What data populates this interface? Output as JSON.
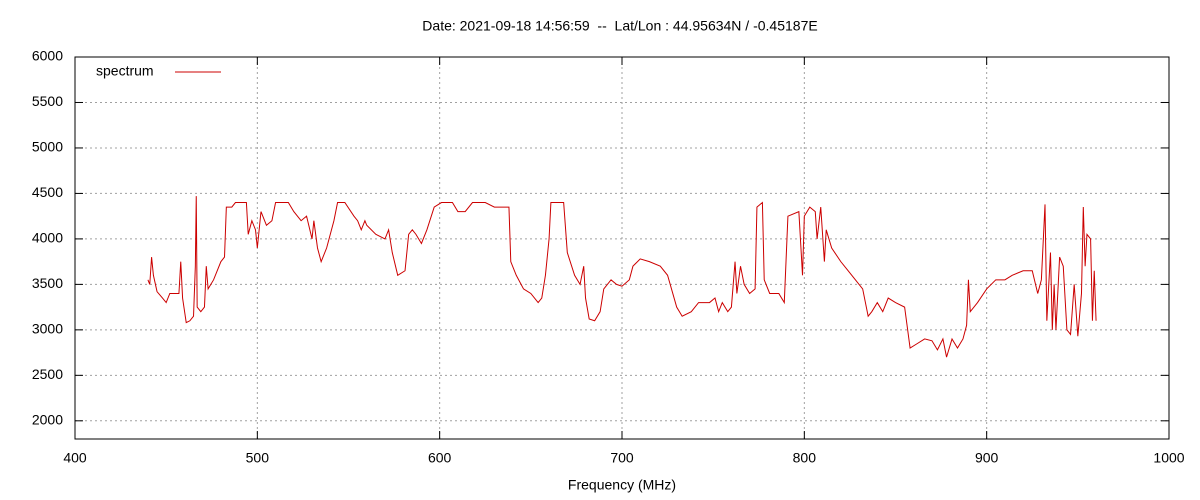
{
  "chart_data": {
    "type": "line",
    "title": "Date: 2021-09-18 14:56:59  --  Lat/Lon : 44.95634N / -0.45187E",
    "x_label": "Frequency (MHz)",
    "legend": "top-left",
    "grid": true,
    "xlim": [
      400,
      1000
    ],
    "xticks": [
      400,
      500,
      600,
      700,
      800,
      900,
      1000
    ],
    "ylim": [
      1800,
      6000
    ],
    "yticks": [
      2000,
      2500,
      3000,
      3500,
      4000,
      4500,
      5000,
      5500,
      6000
    ],
    "x": [
      440,
      441,
      442,
      443,
      445,
      448,
      450,
      452,
      457,
      458,
      459,
      461,
      463,
      465,
      466,
      466.5,
      467,
      469,
      471,
      472,
      473,
      476,
      480,
      482,
      483,
      486,
      488,
      494,
      495,
      497,
      499,
      500,
      502,
      505,
      508,
      510,
      517,
      520,
      524,
      527,
      530,
      531,
      533,
      535,
      538,
      542,
      544,
      548,
      553,
      555,
      557,
      559,
      560,
      565,
      570,
      572,
      574,
      577,
      581,
      583,
      585,
      587,
      590,
      593,
      597,
      601,
      607,
      610,
      614,
      618,
      625,
      630,
      635,
      638,
      639,
      642,
      646,
      650,
      654,
      656,
      658,
      660,
      661,
      668,
      670,
      674,
      677,
      679,
      680,
      682,
      685,
      688,
      690,
      694,
      697,
      700,
      704,
      706,
      710,
      715,
      721,
      725,
      730,
      733,
      738,
      742,
      748,
      751,
      753,
      755,
      758,
      760,
      762,
      763,
      765,
      767,
      770,
      773,
      774,
      777,
      778,
      781,
      786,
      789,
      791,
      797,
      799,
      800,
      803,
      806,
      807,
      809,
      811,
      812,
      815,
      820,
      824,
      828,
      832,
      835,
      837,
      840,
      843,
      846,
      850,
      855,
      858,
      862,
      866,
      870,
      873,
      876,
      878,
      881,
      884,
      887,
      889,
      890,
      891,
      895,
      900,
      905,
      910,
      914,
      920,
      925,
      928,
      930,
      932,
      933,
      935,
      936,
      937,
      938,
      940,
      942,
      944,
      946,
      948,
      950,
      952,
      953,
      954,
      955,
      957,
      958,
      959,
      960
    ],
    "series": [
      {
        "name": "spectrum",
        "color": "#cc0000",
        "values": [
          3550,
          3500,
          3800,
          3600,
          3420,
          3350,
          3300,
          3400,
          3400,
          3750,
          3350,
          3080,
          3100,
          3150,
          3700,
          4470,
          3250,
          3200,
          3250,
          3700,
          3450,
          3550,
          3750,
          3800,
          4350,
          4350,
          4400,
          4400,
          4050,
          4200,
          4100,
          3900,
          4300,
          4150,
          4200,
          4400,
          4400,
          4300,
          4200,
          4250,
          4000,
          4200,
          3900,
          3750,
          3900,
          4200,
          4400,
          4400,
          4250,
          4200,
          4100,
          4200,
          4150,
          4050,
          4000,
          4100,
          3850,
          3600,
          3650,
          4050,
          4100,
          4050,
          3950,
          4100,
          4350,
          4400,
          4400,
          4300,
          4300,
          4400,
          4400,
          4350,
          4350,
          4350,
          3750,
          3600,
          3450,
          3400,
          3300,
          3350,
          3600,
          4000,
          4400,
          4400,
          3850,
          3600,
          3500,
          3700,
          3350,
          3120,
          3100,
          3200,
          3450,
          3550,
          3500,
          3480,
          3550,
          3700,
          3780,
          3750,
          3700,
          3600,
          3250,
          3150,
          3200,
          3300,
          3300,
          3350,
          3200,
          3300,
          3200,
          3250,
          3750,
          3400,
          3700,
          3500,
          3400,
          3450,
          4350,
          4400,
          3550,
          3400,
          3400,
          3300,
          4250,
          4300,
          3600,
          4250,
          4350,
          4300,
          4000,
          4350,
          3750,
          4100,
          3900,
          3750,
          3650,
          3550,
          3450,
          3150,
          3200,
          3300,
          3200,
          3350,
          3300,
          3250,
          2800,
          2850,
          2900,
          2880,
          2780,
          2900,
          2700,
          2900,
          2800,
          2900,
          3050,
          3550,
          3200,
          3300,
          3450,
          3550,
          3550,
          3600,
          3650,
          3650,
          3400,
          3550,
          4380,
          3100,
          3850,
          3000,
          3500,
          3000,
          3800,
          3700,
          3000,
          2950,
          3500,
          2930,
          3400,
          4350,
          3700,
          4050,
          4000,
          3100,
          3650,
          3100
        ]
      }
    ]
  }
}
